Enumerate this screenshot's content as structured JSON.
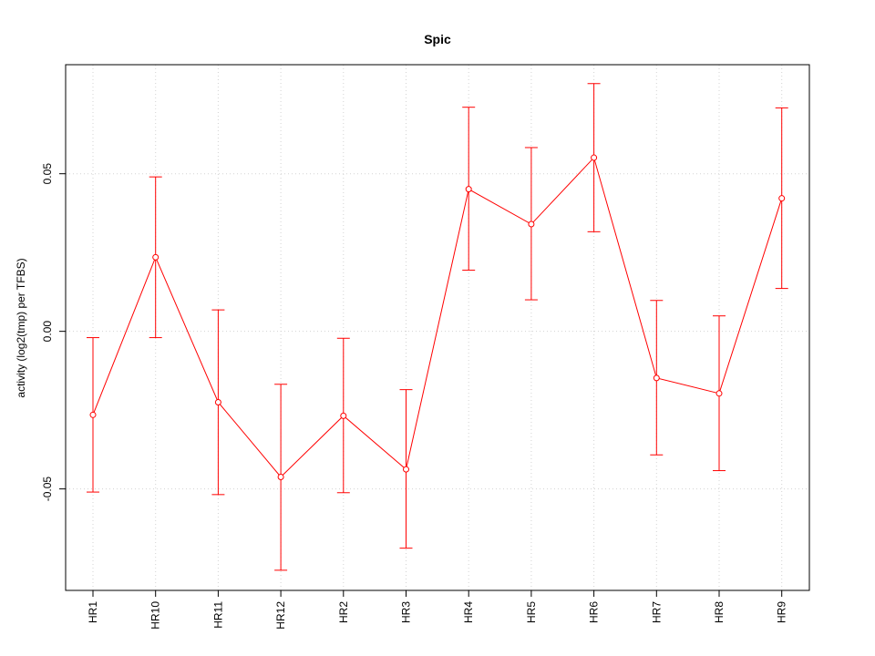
{
  "chart_data": {
    "type": "line",
    "title": "Spic",
    "xlabel": "",
    "ylabel": "activity (log2(tmp) per TFBS)",
    "categories": [
      "HR1",
      "HR10",
      "HR11",
      "HR12",
      "HR2",
      "HR3",
      "HR4",
      "HR5",
      "HR6",
      "HR7",
      "HR8",
      "HR9"
    ],
    "series": [
      {
        "values": [
          -0.0265,
          0.0235,
          -0.0225,
          -0.0462,
          -0.0268,
          -0.0438,
          0.0451,
          0.034,
          0.0551,
          -0.0148,
          -0.0197,
          0.0422
        ],
        "lower": [
          -0.051,
          -0.002,
          -0.0518,
          -0.0758,
          -0.0512,
          -0.0688,
          0.0194,
          0.01,
          0.0316,
          -0.0392,
          -0.0442,
          0.0136
        ],
        "upper": [
          -0.002,
          0.049,
          0.0068,
          -0.0168,
          -0.0022,
          -0.0185,
          0.0711,
          0.0583,
          0.0786,
          0.0098,
          0.0049,
          0.0709
        ],
        "color": "#ff0000"
      }
    ],
    "yticks": [
      -0.05,
      0.0,
      0.05
    ],
    "ytick_labels": [
      "-0.05",
      "0.00",
      "0.05"
    ],
    "ylim": [
      -0.0822,
      0.0846
    ],
    "grid": true,
    "grid_color": "#d3d3d3"
  }
}
